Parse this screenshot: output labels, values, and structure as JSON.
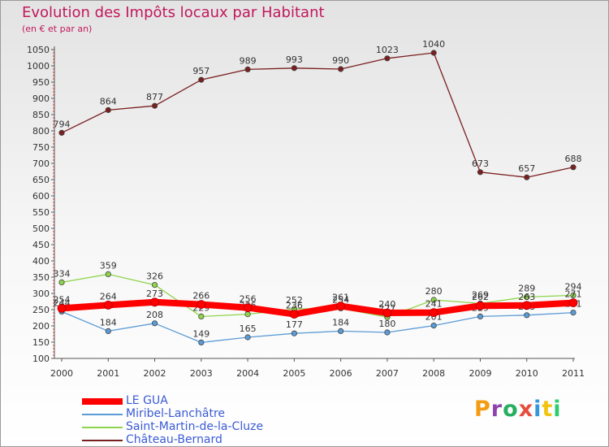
{
  "header": {
    "title": "Evolution des Impôts locaux par Habitant",
    "subtitle": "(en € et par an)"
  },
  "branding": {
    "logo_text": "Proxiti",
    "logo_colors": [
      "#f39c12",
      "#8e44ad",
      "#27ae60",
      "#e74c3c",
      "#3498db",
      "#f1c40f",
      "#2ecc71"
    ]
  },
  "chart_data": {
    "type": "line",
    "title": "Evolution des Impôts locaux par Habitant",
    "subtitle": "(en € et par an)",
    "xlabel": "",
    "ylabel": "",
    "categories": [
      "2000",
      "2001",
      "2002",
      "2003",
      "2004",
      "2005",
      "2006",
      "2007",
      "2008",
      "2009",
      "2010",
      "2011"
    ],
    "ylim": [
      100,
      1050
    ],
    "yticks": [
      100,
      150,
      200,
      250,
      300,
      350,
      400,
      450,
      500,
      550,
      600,
      650,
      700,
      750,
      800,
      850,
      900,
      950,
      1000,
      1050
    ],
    "grid": false,
    "legend_position": "bottom-left",
    "series": [
      {
        "name": "LE GUA",
        "color": "#ff0000",
        "values": [
          254,
          264,
          273,
          266,
          256,
          236,
          261,
          240,
          241,
          262,
          263,
          271
        ]
      },
      {
        "name": "Miribel-Lanchâtre",
        "color": "#5b9bd5",
        "values": [
          244,
          184,
          208,
          149,
          165,
          177,
          184,
          180,
          201,
          229,
          233,
          241
        ]
      },
      {
        "name": "Saint-Martin-de-la-Cluze",
        "color": "#8fd44c",
        "values": [
          334,
          359,
          326,
          229,
          236,
          252,
          254,
          227,
          280,
          269,
          289,
          294
        ]
      },
      {
        "name": "Château-Bernard",
        "color": "#7a1f1f",
        "values": [
          794,
          864,
          877,
          957,
          989,
          993,
          990,
          1023,
          1040,
          673,
          657,
          688
        ]
      }
    ]
  }
}
